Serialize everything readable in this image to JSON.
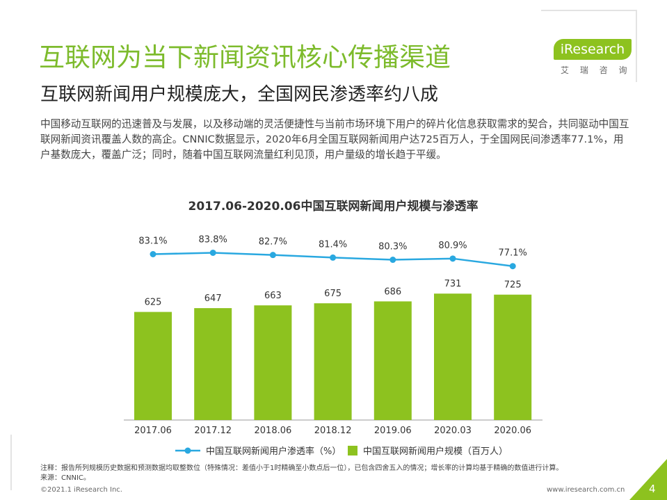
{
  "header": {
    "title": "互联网为当下新闻资讯核心传播渠道",
    "subtitle": "互联网新闻用户规模庞大，全国网民渗透率约八成",
    "logo": "iResearch",
    "logo_sub": "艾 瑞 咨 询"
  },
  "body": "中国移动互联网的迅速普及与发展，以及移动端的灵活便捷性与当前市场环境下用户的碎片化信息获取需求的契合，共同驱动中国互联网新闻资讯覆盖人数的高企。CNNIC数据显示，2020年6月全国互联网新闻用户达725百万人，于全国网民间渗透率77.1%，用户基数庞大，覆盖广泛；同时，随着中国互联网流量红利见顶，用户量级的增长趋于平缓。",
  "chart_data": {
    "type": "bar-line",
    "title": "2017.06-2020.06中国互联网新闻用户规模与渗透率",
    "categories": [
      "2017.06",
      "2017.12",
      "2018.06",
      "2018.12",
      "2019.06",
      "2020.03",
      "2020.06"
    ],
    "series": [
      {
        "name": "中国互联网新闻用户渗透率（%）",
        "type": "line",
        "color": "#29a8e0",
        "values": [
          83.1,
          83.8,
          82.7,
          81.4,
          80.3,
          80.9,
          77.1
        ],
        "value_labels": [
          "83.1%",
          "83.8%",
          "82.7%",
          "81.4%",
          "80.3%",
          "80.9%",
          "77.1%"
        ]
      },
      {
        "name": "中国互联网新闻用户规模（百万人）",
        "type": "bar",
        "color": "#8dc21f",
        "values": [
          625,
          647,
          663,
          675,
          686,
          731,
          725
        ]
      }
    ]
  },
  "footer": {
    "note": "注释：报告所列规模历史数据和预测数据均取整数位（特殊情况：差值小于1时精确至小数点后一位），已包含四舍五入的情况；增长率的计算均基于精确的数值进行计算。",
    "source": "来源：CNNIC。",
    "copyright": "©2021.1 iResearch Inc.",
    "url": "www.iresearch.com.cn",
    "page": "4"
  }
}
